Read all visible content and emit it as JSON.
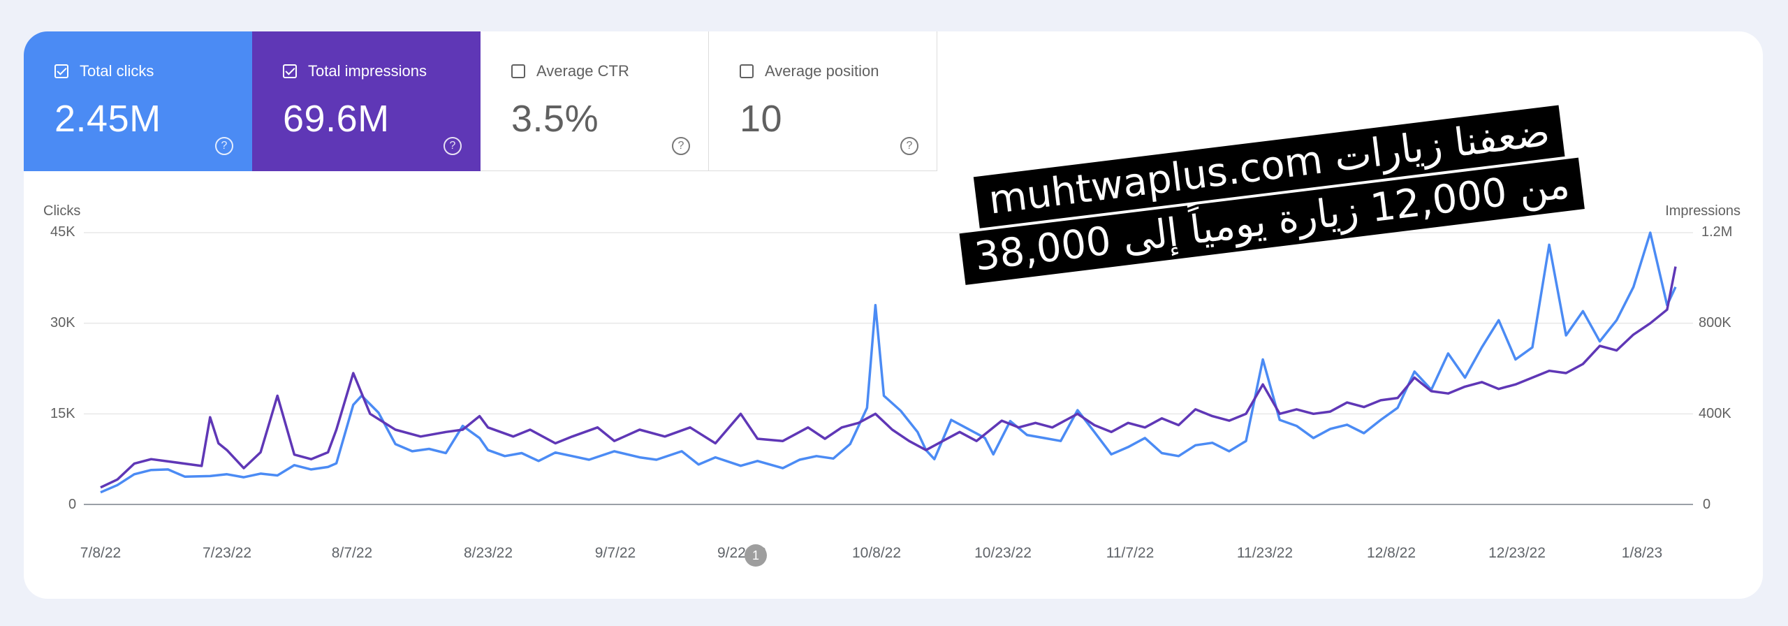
{
  "metrics": [
    {
      "label": "Total clicks",
      "value": "2.45M",
      "checked": true
    },
    {
      "label": "Total impressions",
      "value": "69.6M",
      "checked": true
    },
    {
      "label": "Average CTR",
      "value": "3.5%",
      "checked": false
    },
    {
      "label": "Average position",
      "value": "10",
      "checked": false
    }
  ],
  "overlay": {
    "line1": "ضعفنا زيارات muhtwaplus.com",
    "line2": "من 12,000 زيارة يومياً إلى 38,000"
  },
  "annotation_label": "1",
  "help_glyph": "?",
  "colors": {
    "clicks": "#4b8bf4",
    "impressions": "#5f37b6",
    "grid": "#e8e8e8"
  },
  "chart_data": {
    "type": "line",
    "left_axis": {
      "title": "Clicks",
      "ticks": [
        "0",
        "15K",
        "30K",
        "45K"
      ],
      "ylim": [
        0,
        45000
      ]
    },
    "right_axis": {
      "title": "Impressions",
      "ticks": [
        "0",
        "400K",
        "800K",
        "1.2M"
      ],
      "ylim": [
        0,
        1200000
      ]
    },
    "x_tick_labels": [
      "7/8/22",
      "7/23/22",
      "8/7/22",
      "8/23/22",
      "9/7/22",
      "9/22/22",
      "10/8/22",
      "10/23/22",
      "11/7/22",
      "11/23/22",
      "12/8/22",
      "12/23/22",
      "1/8/23"
    ],
    "x_range": [
      "2022-07-08",
      "2023-01-11"
    ],
    "series": [
      {
        "name": "Clicks",
        "axis": "left",
        "color": "#4b8bf4",
        "points": [
          [
            "2022-07-08",
            2000
          ],
          [
            "2022-07-10",
            3200
          ],
          [
            "2022-07-12",
            5000
          ],
          [
            "2022-07-14",
            5700
          ],
          [
            "2022-07-16",
            5800
          ],
          [
            "2022-07-18",
            4600
          ],
          [
            "2022-07-21",
            4700
          ],
          [
            "2022-07-23",
            5000
          ],
          [
            "2022-07-25",
            4500
          ],
          [
            "2022-07-27",
            5100
          ],
          [
            "2022-07-29",
            4800
          ],
          [
            "2022-07-31",
            6500
          ],
          [
            "2022-08-02",
            5800
          ],
          [
            "2022-08-04",
            6200
          ],
          [
            "2022-08-05",
            6800
          ],
          [
            "2022-08-07",
            16500
          ],
          [
            "2022-08-08",
            18000
          ],
          [
            "2022-08-10",
            15200
          ],
          [
            "2022-08-12",
            10000
          ],
          [
            "2022-08-14",
            8800
          ],
          [
            "2022-08-16",
            9200
          ],
          [
            "2022-08-18",
            8500
          ],
          [
            "2022-08-20",
            13000
          ],
          [
            "2022-08-22",
            11000
          ],
          [
            "2022-08-23",
            9000
          ],
          [
            "2022-08-25",
            8000
          ],
          [
            "2022-08-27",
            8500
          ],
          [
            "2022-08-29",
            7200
          ],
          [
            "2022-08-31",
            8600
          ],
          [
            "2022-09-02",
            8000
          ],
          [
            "2022-09-04",
            7400
          ],
          [
            "2022-09-07",
            8800
          ],
          [
            "2022-09-10",
            7800
          ],
          [
            "2022-09-12",
            7400
          ],
          [
            "2022-09-15",
            8800
          ],
          [
            "2022-09-17",
            6600
          ],
          [
            "2022-09-19",
            7800
          ],
          [
            "2022-09-22",
            6400
          ],
          [
            "2022-09-24",
            7200
          ],
          [
            "2022-09-27",
            6000
          ],
          [
            "2022-09-29",
            7400
          ],
          [
            "2022-10-01",
            8000
          ],
          [
            "2022-10-03",
            7600
          ],
          [
            "2022-10-05",
            10000
          ],
          [
            "2022-10-07",
            16000
          ],
          [
            "2022-10-08",
            33000
          ],
          [
            "2022-10-09",
            18000
          ],
          [
            "2022-10-11",
            15500
          ],
          [
            "2022-10-13",
            12000
          ],
          [
            "2022-10-14",
            9000
          ],
          [
            "2022-10-15",
            7500
          ],
          [
            "2022-10-17",
            14000
          ],
          [
            "2022-10-19",
            12500
          ],
          [
            "2022-10-21",
            11000
          ],
          [
            "2022-10-22",
            8300
          ],
          [
            "2022-10-24",
            13800
          ],
          [
            "2022-10-26",
            11500
          ],
          [
            "2022-10-28",
            11000
          ],
          [
            "2022-10-30",
            10500
          ],
          [
            "2022-11-01",
            15600
          ],
          [
            "2022-11-03",
            12000
          ],
          [
            "2022-11-05",
            8300
          ],
          [
            "2022-11-07",
            9500
          ],
          [
            "2022-11-09",
            11000
          ],
          [
            "2022-11-11",
            8500
          ],
          [
            "2022-11-13",
            8000
          ],
          [
            "2022-11-15",
            9800
          ],
          [
            "2022-11-17",
            10200
          ],
          [
            "2022-11-19",
            8800
          ],
          [
            "2022-11-21",
            10500
          ],
          [
            "2022-11-23",
            24000
          ],
          [
            "2022-11-25",
            14000
          ],
          [
            "2022-11-27",
            13000
          ],
          [
            "2022-11-29",
            11000
          ],
          [
            "2022-12-01",
            12500
          ],
          [
            "2022-12-03",
            13200
          ],
          [
            "2022-12-05",
            11800
          ],
          [
            "2022-12-07",
            14000
          ],
          [
            "2022-12-09",
            16000
          ],
          [
            "2022-12-11",
            22000
          ],
          [
            "2022-12-13",
            19000
          ],
          [
            "2022-12-15",
            25000
          ],
          [
            "2022-12-17",
            21000
          ],
          [
            "2022-12-19",
            26000
          ],
          [
            "2022-12-21",
            30500
          ],
          [
            "2022-12-23",
            24000
          ],
          [
            "2022-12-25",
            26000
          ],
          [
            "2022-12-27",
            43000
          ],
          [
            "2022-12-29",
            28000
          ],
          [
            "2022-12-31",
            32000
          ],
          [
            "2023-01-02",
            27000
          ],
          [
            "2023-01-04",
            30500
          ],
          [
            "2023-01-06",
            36000
          ],
          [
            "2023-01-08",
            45000
          ],
          [
            "2023-01-10",
            33000
          ],
          [
            "2023-01-11",
            36000
          ]
        ]
      },
      {
        "name": "Impressions",
        "axis": "right",
        "color": "#5f37b6",
        "points": [
          [
            "2022-07-08",
            75000
          ],
          [
            "2022-07-10",
            110000
          ],
          [
            "2022-07-12",
            180000
          ],
          [
            "2022-07-14",
            200000
          ],
          [
            "2022-07-16",
            190000
          ],
          [
            "2022-07-18",
            180000
          ],
          [
            "2022-07-20",
            170000
          ],
          [
            "2022-07-21",
            385000
          ],
          [
            "2022-07-22",
            270000
          ],
          [
            "2022-07-23",
            240000
          ],
          [
            "2022-07-25",
            160000
          ],
          [
            "2022-07-27",
            230000
          ],
          [
            "2022-07-29",
            480000
          ],
          [
            "2022-07-31",
            220000
          ],
          [
            "2022-08-02",
            200000
          ],
          [
            "2022-08-04",
            230000
          ],
          [
            "2022-08-05",
            330000
          ],
          [
            "2022-08-07",
            580000
          ],
          [
            "2022-08-09",
            400000
          ],
          [
            "2022-08-12",
            330000
          ],
          [
            "2022-08-15",
            300000
          ],
          [
            "2022-08-18",
            320000
          ],
          [
            "2022-08-20",
            330000
          ],
          [
            "2022-08-22",
            390000
          ],
          [
            "2022-08-23",
            340000
          ],
          [
            "2022-08-26",
            300000
          ],
          [
            "2022-08-28",
            330000
          ],
          [
            "2022-08-31",
            270000
          ],
          [
            "2022-09-02",
            300000
          ],
          [
            "2022-09-05",
            340000
          ],
          [
            "2022-09-07",
            280000
          ],
          [
            "2022-09-10",
            330000
          ],
          [
            "2022-09-13",
            300000
          ],
          [
            "2022-09-16",
            340000
          ],
          [
            "2022-09-19",
            270000
          ],
          [
            "2022-09-22",
            400000
          ],
          [
            "2022-09-24",
            290000
          ],
          [
            "2022-09-27",
            280000
          ],
          [
            "2022-09-30",
            340000
          ],
          [
            "2022-10-02",
            290000
          ],
          [
            "2022-10-04",
            340000
          ],
          [
            "2022-10-06",
            360000
          ],
          [
            "2022-10-08",
            400000
          ],
          [
            "2022-10-10",
            330000
          ],
          [
            "2022-10-12",
            280000
          ],
          [
            "2022-10-14",
            240000
          ],
          [
            "2022-10-16",
            280000
          ],
          [
            "2022-10-18",
            320000
          ],
          [
            "2022-10-20",
            280000
          ],
          [
            "2022-10-23",
            370000
          ],
          [
            "2022-10-25",
            340000
          ],
          [
            "2022-10-27",
            360000
          ],
          [
            "2022-10-29",
            340000
          ],
          [
            "2022-11-01",
            400000
          ],
          [
            "2022-11-03",
            350000
          ],
          [
            "2022-11-05",
            320000
          ],
          [
            "2022-11-07",
            360000
          ],
          [
            "2022-11-09",
            340000
          ],
          [
            "2022-11-11",
            380000
          ],
          [
            "2022-11-13",
            350000
          ],
          [
            "2022-11-15",
            420000
          ],
          [
            "2022-11-17",
            390000
          ],
          [
            "2022-11-19",
            370000
          ],
          [
            "2022-11-21",
            400000
          ],
          [
            "2022-11-23",
            530000
          ],
          [
            "2022-11-25",
            400000
          ],
          [
            "2022-11-27",
            420000
          ],
          [
            "2022-11-29",
            400000
          ],
          [
            "2022-12-01",
            410000
          ],
          [
            "2022-12-03",
            450000
          ],
          [
            "2022-12-05",
            430000
          ],
          [
            "2022-12-07",
            460000
          ],
          [
            "2022-12-09",
            470000
          ],
          [
            "2022-12-11",
            560000
          ],
          [
            "2022-12-13",
            500000
          ],
          [
            "2022-12-15",
            490000
          ],
          [
            "2022-12-17",
            520000
          ],
          [
            "2022-12-19",
            540000
          ],
          [
            "2022-12-21",
            510000
          ],
          [
            "2022-12-23",
            530000
          ],
          [
            "2022-12-25",
            560000
          ],
          [
            "2022-12-27",
            590000
          ],
          [
            "2022-12-29",
            580000
          ],
          [
            "2022-12-31",
            620000
          ],
          [
            "2023-01-02",
            700000
          ],
          [
            "2023-01-04",
            680000
          ],
          [
            "2023-01-06",
            750000
          ],
          [
            "2023-01-08",
            800000
          ],
          [
            "2023-01-10",
            860000
          ],
          [
            "2023-01-11",
            1050000
          ]
        ]
      }
    ]
  }
}
